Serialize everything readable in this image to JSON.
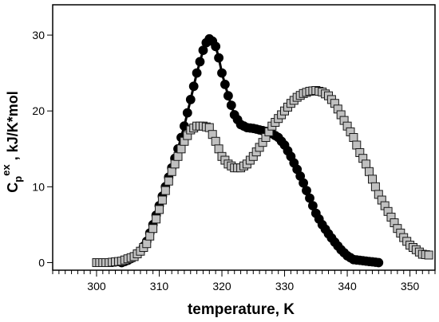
{
  "chart_data": {
    "type": "scatter",
    "xlabel": "temperature, K",
    "ylabel": {
      "base": "C",
      "sub": "p",
      "sup": "ex",
      "rest": " , kJ/K*mol"
    },
    "xlim": [
      293,
      354
    ],
    "ylim": [
      -1,
      34
    ],
    "xticks": [
      300,
      310,
      320,
      330,
      340,
      350
    ],
    "yticks": [
      0,
      10,
      20,
      30
    ],
    "xticks_minor_step": 1,
    "grid": false,
    "legend": "none",
    "series": [
      {
        "marker": "circle",
        "color": "#000000",
        "fit_color": "#000000",
        "x": [
          304,
          305,
          306,
          307,
          308,
          309,
          310,
          311,
          312,
          313,
          314,
          315,
          316,
          317,
          317.5,
          318,
          318.5,
          319,
          319.5,
          320,
          321,
          322,
          323,
          324,
          325,
          326,
          327,
          328,
          329,
          330,
          331,
          332,
          333,
          334,
          335,
          336,
          337,
          338,
          339,
          340,
          341,
          342,
          343,
          344,
          345
        ],
        "y": [
          0,
          0.3,
          0.8,
          1.5,
          2.8,
          5,
          7.5,
          10,
          12.5,
          15,
          18,
          21.5,
          25,
          28,
          29,
          29.5,
          29.2,
          28.5,
          27,
          25,
          22,
          19.5,
          18.2,
          17.8,
          17.7,
          17.5,
          17.3,
          17,
          16.5,
          15.5,
          14,
          12.3,
          10.5,
          8.5,
          6.5,
          5,
          3.8,
          2.7,
          1.7,
          0.9,
          0.4,
          0.3,
          0.2,
          0.1,
          0
        ]
      },
      {
        "marker": "square",
        "color": "#c0c0c0",
        "fit_color": "#b4b4b4",
        "x": [
          300,
          302,
          304,
          305,
          306,
          307,
          308,
          309,
          310,
          311,
          312,
          313,
          314,
          315,
          316,
          317,
          318,
          319,
          320,
          321,
          322,
          323,
          324,
          325,
          326,
          327,
          328,
          329,
          330,
          331,
          332,
          333,
          334,
          335,
          336,
          337,
          338,
          339,
          340,
          341,
          342,
          343,
          344,
          345,
          346,
          347,
          348,
          349,
          350,
          351,
          352,
          353
        ],
        "y": [
          0,
          0,
          0.2,
          0.5,
          0.8,
          1.5,
          2.5,
          4.5,
          7,
          9.5,
          12,
          14,
          16,
          17.5,
          18,
          18,
          17.8,
          16,
          14,
          13,
          12.5,
          12.5,
          13,
          14,
          15.2,
          16.5,
          18,
          19,
          20,
          21,
          21.8,
          22.3,
          22.6,
          22.7,
          22.5,
          22,
          21,
          19.5,
          18,
          16.5,
          14.5,
          13,
          11,
          9,
          7.5,
          6,
          4.5,
          3.3,
          2.3,
          1.7,
          1.1,
          1
        ]
      }
    ]
  }
}
